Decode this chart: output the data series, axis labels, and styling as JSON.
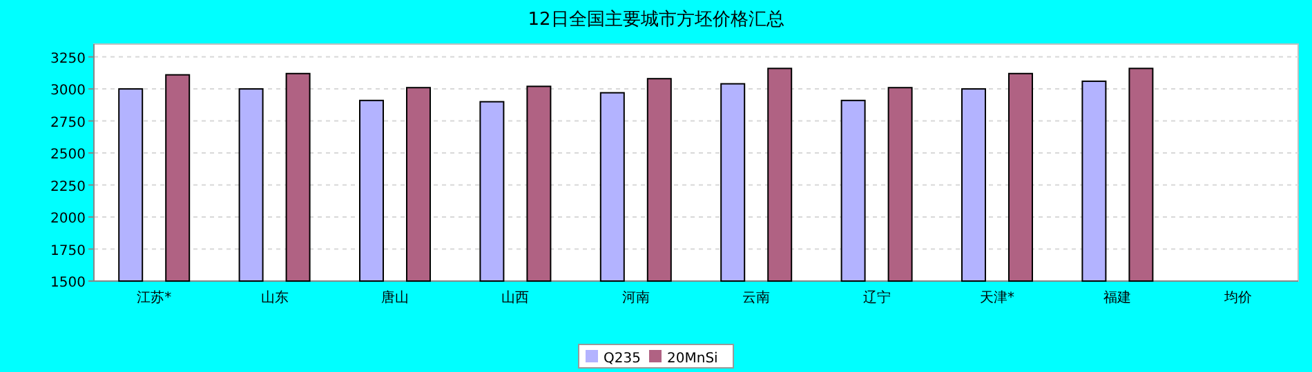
{
  "chart_data": {
    "type": "bar",
    "title": "12日全国主要城市方坯价格汇总",
    "categories": [
      "江苏*",
      "山东",
      "唐山",
      "山西",
      "河南",
      "云南",
      "辽宁",
      "天津*",
      "福建",
      "均价"
    ],
    "series": [
      {
        "name": "Q235",
        "color": "#b3b3ff",
        "values": [
          3000,
          3000,
          2910,
          2900,
          2970,
          3040,
          2910,
          3000,
          3060,
          null
        ]
      },
      {
        "name": "20MnSi",
        "color": "#b06283",
        "values": [
          3110,
          3120,
          3010,
          3020,
          3080,
          3160,
          3010,
          3120,
          3160,
          null
        ]
      }
    ],
    "ylim": [
      1500,
      3350
    ],
    "yticks": [
      1500,
      1750,
      2000,
      2250,
      2500,
      2750,
      3000,
      3250
    ],
    "grid": "y",
    "legend": "bottom"
  }
}
